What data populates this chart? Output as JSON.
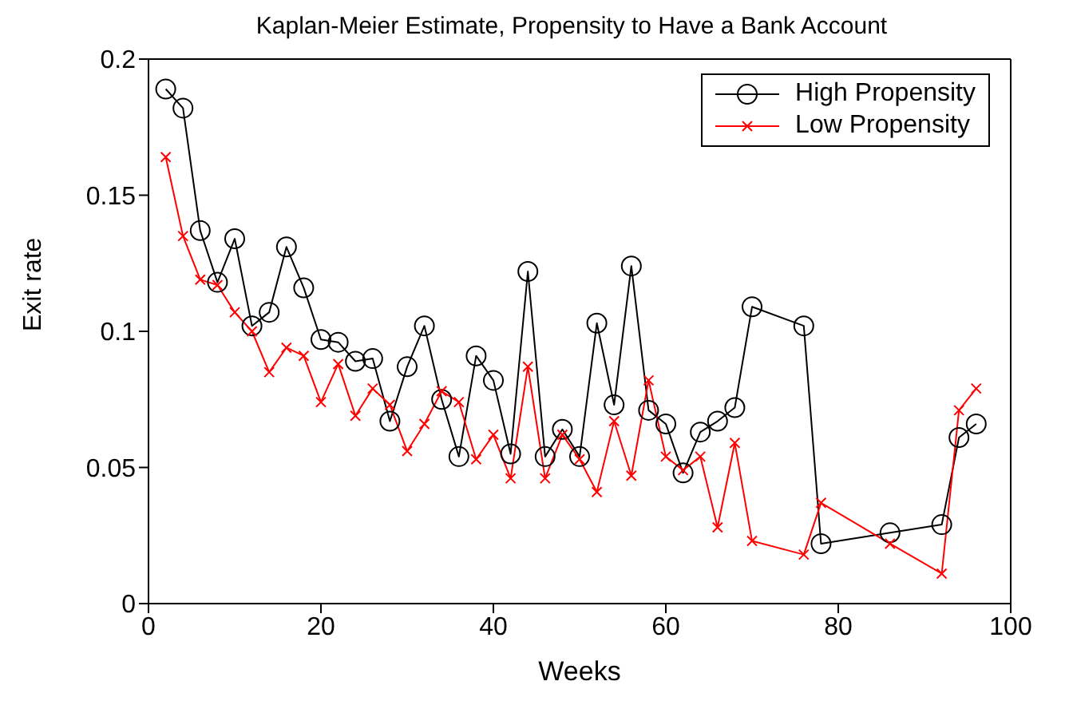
{
  "chart_data": {
    "type": "line",
    "title": "Kaplan-Meier Estimate, Propensity to Have a Bank Account",
    "xlabel": "Weeks",
    "ylabel": "Exit rate",
    "x": [
      2,
      4,
      6,
      8,
      10,
      12,
      14,
      16,
      18,
      20,
      22,
      24,
      26,
      28,
      30,
      32,
      34,
      36,
      38,
      40,
      42,
      44,
      46,
      48,
      50,
      52,
      54,
      56,
      58,
      60,
      62,
      64,
      66,
      68,
      70,
      76,
      78,
      86,
      92,
      94,
      96
    ],
    "series": [
      {
        "name": "High Propensity",
        "color": "#000000",
        "marker": "circle",
        "values": [
          0.189,
          0.182,
          0.137,
          0.118,
          0.134,
          0.102,
          0.107,
          0.131,
          0.116,
          0.097,
          0.096,
          0.089,
          0.09,
          0.067,
          0.087,
          0.102,
          0.075,
          0.054,
          0.091,
          0.082,
          0.055,
          0.122,
          0.054,
          0.064,
          0.054,
          0.103,
          0.073,
          0.124,
          0.071,
          0.066,
          0.048,
          0.063,
          0.067,
          0.072,
          0.109,
          0.102,
          0.022,
          0.026,
          0.029,
          0.061,
          0.066
        ]
      },
      {
        "name": "Low Propensity",
        "color": "#ff0000",
        "marker": "cross",
        "values": [
          0.164,
          0.135,
          0.119,
          0.117,
          0.107,
          0.1,
          0.085,
          0.094,
          0.091,
          0.074,
          0.088,
          0.069,
          0.079,
          0.073,
          0.056,
          0.066,
          0.078,
          0.074,
          0.053,
          0.062,
          0.046,
          0.087,
          0.046,
          0.062,
          0.053,
          0.041,
          0.067,
          0.047,
          0.082,
          0.054,
          0.049,
          0.054,
          0.028,
          0.059,
          0.023,
          0.018,
          0.037,
          0.022,
          0.011,
          0.071,
          0.079
        ]
      }
    ],
    "xlim": [
      0,
      100
    ],
    "xticks": [
      0,
      20,
      40,
      60,
      80,
      100
    ],
    "ylim": [
      0,
      0.2
    ],
    "yticks": [
      0,
      0.05,
      0.1,
      0.15,
      0.2
    ],
    "grid": false,
    "legend": "top right",
    "line_style": "solid"
  }
}
